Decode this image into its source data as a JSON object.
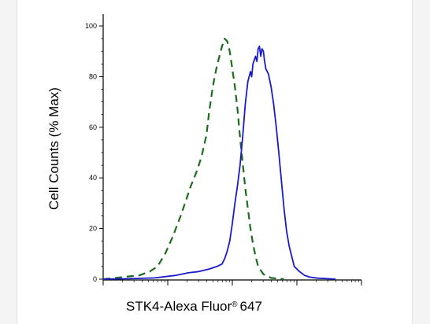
{
  "chart_data": {
    "type": "line",
    "title": "",
    "xlabel": "STK4-Alexa Fluor® 647",
    "xlabel_parts": {
      "main": "STK4-Alexa Fluor",
      "reg": "®",
      "tail": "647"
    },
    "ylabel": "Cell Counts (% Max)",
    "ylim": [
      0,
      100
    ],
    "xlim": [
      0,
      1
    ],
    "x_scale": "log",
    "x_tick_labels_shown": false,
    "yticks": [
      "0",
      "20",
      "40",
      "60",
      "80",
      "100"
    ],
    "grid": false,
    "legend": "none",
    "series": [
      {
        "style": "dashed",
        "color": "#1e6b1e",
        "points": [
          [
            0.0,
            0
          ],
          [
            0.05,
            0.5
          ],
          [
            0.09,
            1
          ],
          [
            0.14,
            1.5
          ],
          [
            0.18,
            3
          ],
          [
            0.21,
            5
          ],
          [
            0.24,
            10
          ],
          [
            0.27,
            17
          ],
          [
            0.3,
            25
          ],
          [
            0.32,
            31
          ],
          [
            0.34,
            37
          ],
          [
            0.36,
            42
          ],
          [
            0.38,
            48
          ],
          [
            0.4,
            57
          ],
          [
            0.41,
            66
          ],
          [
            0.42,
            73
          ],
          [
            0.43,
            79
          ],
          [
            0.44,
            84
          ],
          [
            0.45,
            88
          ],
          [
            0.46,
            92
          ],
          [
            0.47,
            95
          ],
          [
            0.48,
            94
          ],
          [
            0.49,
            90
          ],
          [
            0.5,
            83
          ],
          [
            0.51,
            76
          ],
          [
            0.52,
            67
          ],
          [
            0.53,
            56
          ],
          [
            0.54,
            46
          ],
          [
            0.55,
            36
          ],
          [
            0.56,
            28
          ],
          [
            0.57,
            20
          ],
          [
            0.58,
            14
          ],
          [
            0.59,
            9
          ],
          [
            0.6,
            5
          ],
          [
            0.62,
            2
          ],
          [
            0.65,
            0.5
          ],
          [
            0.7,
            0
          ]
        ]
      },
      {
        "style": "solid",
        "color": "#1a1acc",
        "points": [
          [
            0.0,
            0
          ],
          [
            0.1,
            0.2
          ],
          [
            0.2,
            0.5
          ],
          [
            0.28,
            1.5
          ],
          [
            0.33,
            2.5
          ],
          [
            0.37,
            3
          ],
          [
            0.41,
            4
          ],
          [
            0.44,
            5
          ],
          [
            0.46,
            6
          ],
          [
            0.47,
            8
          ],
          [
            0.48,
            11
          ],
          [
            0.49,
            15
          ],
          [
            0.5,
            22
          ],
          [
            0.51,
            30
          ],
          [
            0.52,
            37
          ],
          [
            0.53,
            45
          ],
          [
            0.54,
            56
          ],
          [
            0.55,
            69
          ],
          [
            0.56,
            78
          ],
          [
            0.57,
            82
          ],
          [
            0.575,
            80
          ],
          [
            0.58,
            85
          ],
          [
            0.59,
            88
          ],
          [
            0.595,
            86
          ],
          [
            0.6,
            91
          ],
          [
            0.605,
            92
          ],
          [
            0.61,
            88
          ],
          [
            0.615,
            91
          ],
          [
            0.62,
            90
          ],
          [
            0.625,
            86
          ],
          [
            0.63,
            83
          ],
          [
            0.64,
            81
          ],
          [
            0.65,
            76
          ],
          [
            0.66,
            69
          ],
          [
            0.67,
            60
          ],
          [
            0.68,
            50
          ],
          [
            0.69,
            39
          ],
          [
            0.7,
            28
          ],
          [
            0.71,
            19
          ],
          [
            0.72,
            13
          ],
          [
            0.73,
            9
          ],
          [
            0.74,
            5
          ],
          [
            0.76,
            3
          ],
          [
            0.78,
            1.5
          ],
          [
            0.8,
            0.8
          ],
          [
            0.83,
            0.4
          ],
          [
            0.87,
            0.2
          ],
          [
            0.9,
            0
          ]
        ]
      }
    ]
  }
}
